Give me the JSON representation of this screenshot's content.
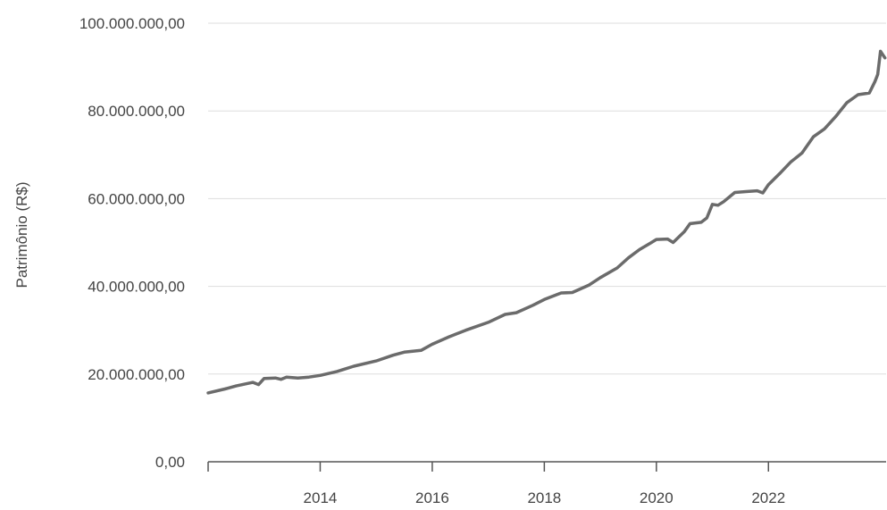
{
  "chart_data": {
    "type": "line",
    "ylabel": "Patrimônio (R$)",
    "xlabel": "",
    "xlim": [
      2012.0,
      2024.1
    ],
    "ylim": [
      0,
      100000000
    ],
    "grid": true,
    "line_color": "#6b6b6b",
    "grid_color": "#dddddd",
    "axis_color": "#555555",
    "y_ticks": [
      {
        "value": 0,
        "label": "0,00"
      },
      {
        "value": 20000000,
        "label": "20.000.000,00"
      },
      {
        "value": 40000000,
        "label": "40.000.000,00"
      },
      {
        "value": 60000000,
        "label": "60.000.000,00"
      },
      {
        "value": 80000000,
        "label": "80.000.000,00"
      },
      {
        "value": 100000000,
        "label": "100.000.000,00"
      }
    ],
    "x_ticks": [
      {
        "value": 2012.0,
        "label": ""
      },
      {
        "value": 2014.0,
        "label": "2014"
      },
      {
        "value": 2016.0,
        "label": "2016"
      },
      {
        "value": 2018.0,
        "label": "2018"
      },
      {
        "value": 2020.0,
        "label": "2020"
      },
      {
        "value": 2022.0,
        "label": "2022"
      }
    ],
    "series": [
      {
        "x": [
          2012.0,
          2012.3,
          2012.5,
          2012.8,
          2012.9,
          2013.0,
          2013.2,
          2013.3,
          2013.4,
          2013.6,
          2013.8,
          2014.0,
          2014.3,
          2014.6,
          2015.0,
          2015.3,
          2015.5,
          2015.8,
          2016.0,
          2016.3,
          2016.6,
          2017.0,
          2017.3,
          2017.5,
          2017.8,
          2018.0,
          2018.3,
          2018.5,
          2018.8,
          2019.0,
          2019.3,
          2019.5,
          2019.7,
          2019.9,
          2020.0,
          2020.2,
          2020.3,
          2020.5,
          2020.6,
          2020.8,
          2020.9,
          2021.0,
          2021.1,
          2021.2,
          2021.4,
          2021.6,
          2021.8,
          2021.9,
          2022.0,
          2022.2,
          2022.4,
          2022.6,
          2022.8,
          2023.0,
          2023.2,
          2023.4,
          2023.6,
          2023.8,
          2023.9,
          2023.95,
          2024.0,
          2024.08
        ],
        "y": [
          15700000,
          16600000,
          17300000,
          18100000,
          17600000,
          19000000,
          19100000,
          18800000,
          19300000,
          19100000,
          19300000,
          19700000,
          20600000,
          21800000,
          23000000,
          24300000,
          25000000,
          25400000,
          26800000,
          28500000,
          30000000,
          31800000,
          33600000,
          34000000,
          35700000,
          37000000,
          38500000,
          38600000,
          40300000,
          42000000,
          44200000,
          46500000,
          48400000,
          49900000,
          50700000,
          50800000,
          50000000,
          52500000,
          54300000,
          54600000,
          55600000,
          58700000,
          58500000,
          59300000,
          61400000,
          61600000,
          61800000,
          61300000,
          63200000,
          65700000,
          68400000,
          70400000,
          74100000,
          75900000,
          78700000,
          81900000,
          83700000,
          84100000,
          86700000,
          88300000,
          93600000,
          92100000
        ]
      }
    ]
  }
}
